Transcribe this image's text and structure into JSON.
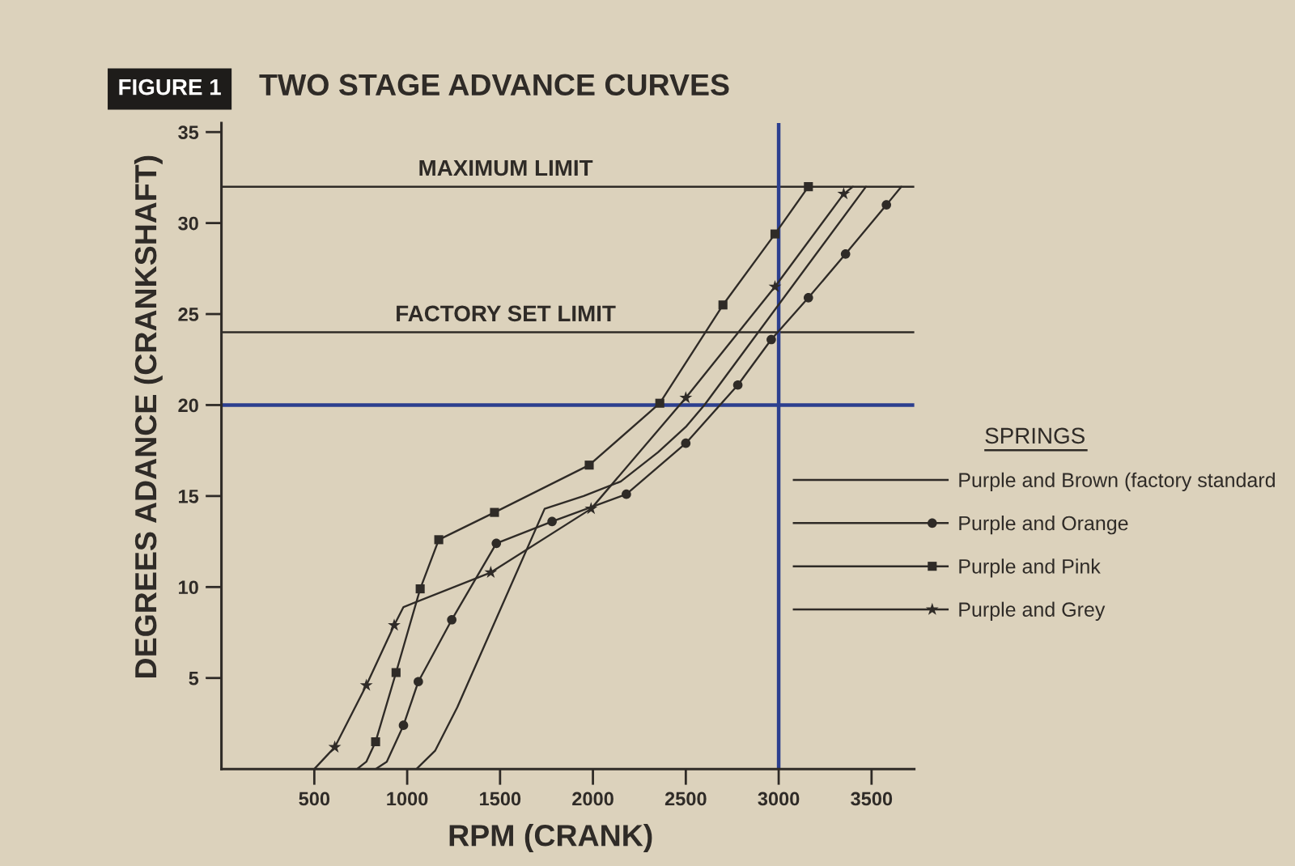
{
  "chart_data": {
    "type": "line",
    "title": "TWO STAGE ADVANCE CURVES",
    "xlabel": "RPM (CRANK)",
    "ylabel": "DEGREES ADANCE (CRANKSHAFT)",
    "annotations": [
      "FIGURE 1"
    ],
    "xlim": [
      0,
      3730
    ],
    "ylim": [
      0,
      35.5
    ],
    "xticks": [
      500,
      1000,
      1500,
      2000,
      2500,
      3000,
      3500
    ],
    "yticks": [
      5,
      10,
      15,
      20,
      25,
      30,
      35
    ],
    "legend": "right",
    "legend_title": "SPRINGS",
    "ref_lines": [
      {
        "axis": "y",
        "value": 32,
        "label": "MAXIMUM LIMIT"
      },
      {
        "axis": "y",
        "value": 24,
        "label": "FACTORY SET LIMIT"
      },
      {
        "axis": "y",
        "value": 20,
        "color": "#2c3f8f"
      },
      {
        "axis": "x",
        "value": 3000,
        "color": "#2c3f8f"
      }
    ],
    "series": [
      {
        "name": "Purple and Brown (factory standard",
        "color": "#2f2b27",
        "x": [
          1050,
          1150,
          1270,
          1740,
          1950,
          2150,
          2350,
          2500,
          2600,
          3470
        ],
        "values": [
          0,
          1.0,
          3.4,
          14.3,
          15.0,
          15.8,
          17.4,
          18.8,
          20.0,
          32.0
        ]
      },
      {
        "color": "#2f2b27",
        "x": [
          830,
          890,
          980
        ],
        "values": [
          0,
          0.4,
          2.4
        ]
      },
      {
        "name": "Purple and Orange",
        "marker": "circle",
        "color": "#2f2b27",
        "x": [
          980,
          1060,
          1240,
          1480,
          1780,
          2180,
          2500,
          2780,
          2960,
          3160,
          3360,
          3580
        ],
        "values": [
          2.4,
          4.8,
          8.2,
          12.4,
          13.6,
          15.1,
          17.9,
          21.1,
          23.6,
          25.9,
          28.3,
          31.0
        ]
      },
      {
        "color": "#2f2b27",
        "x": [
          3580,
          3660
        ],
        "values": [
          31.0,
          32.0
        ]
      },
      {
        "color": "#2f2b27",
        "x": [
          730,
          780,
          830
        ],
        "values": [
          0,
          0.4,
          1.5
        ]
      },
      {
        "name": "Purple and Pink",
        "marker": "square",
        "color": "#2f2b27",
        "x": [
          830,
          940,
          1070,
          1170,
          1470,
          1980,
          2360,
          2700,
          2980,
          3160
        ],
        "values": [
          1.5,
          5.3,
          9.9,
          12.6,
          14.1,
          16.7,
          20.1,
          25.5,
          29.4,
          32.0
        ]
      },
      {
        "color": "#2f2b27",
        "x": [
          500,
          610
        ],
        "values": [
          0,
          1.2
        ]
      },
      {
        "marker": "star",
        "color": "#2f2b27",
        "x": [
          610,
          780,
          930
        ],
        "values": [
          1.2,
          4.6,
          7.9
        ]
      },
      {
        "color": "#2f2b27",
        "x": [
          930,
          980,
          1450
        ],
        "values": [
          7.9,
          8.9,
          10.8
        ]
      },
      {
        "name": "Purple and Grey",
        "marker": "star",
        "color": "#2f2b27",
        "x": [
          1450,
          1990,
          2500,
          2980,
          3350
        ],
        "values": [
          10.8,
          14.3,
          20.4,
          26.5,
          31.6
        ]
      },
      {
        "color": "#2f2b27",
        "x": [
          3350,
          3400
        ],
        "values": [
          31.6,
          32.0
        ]
      }
    ]
  }
}
